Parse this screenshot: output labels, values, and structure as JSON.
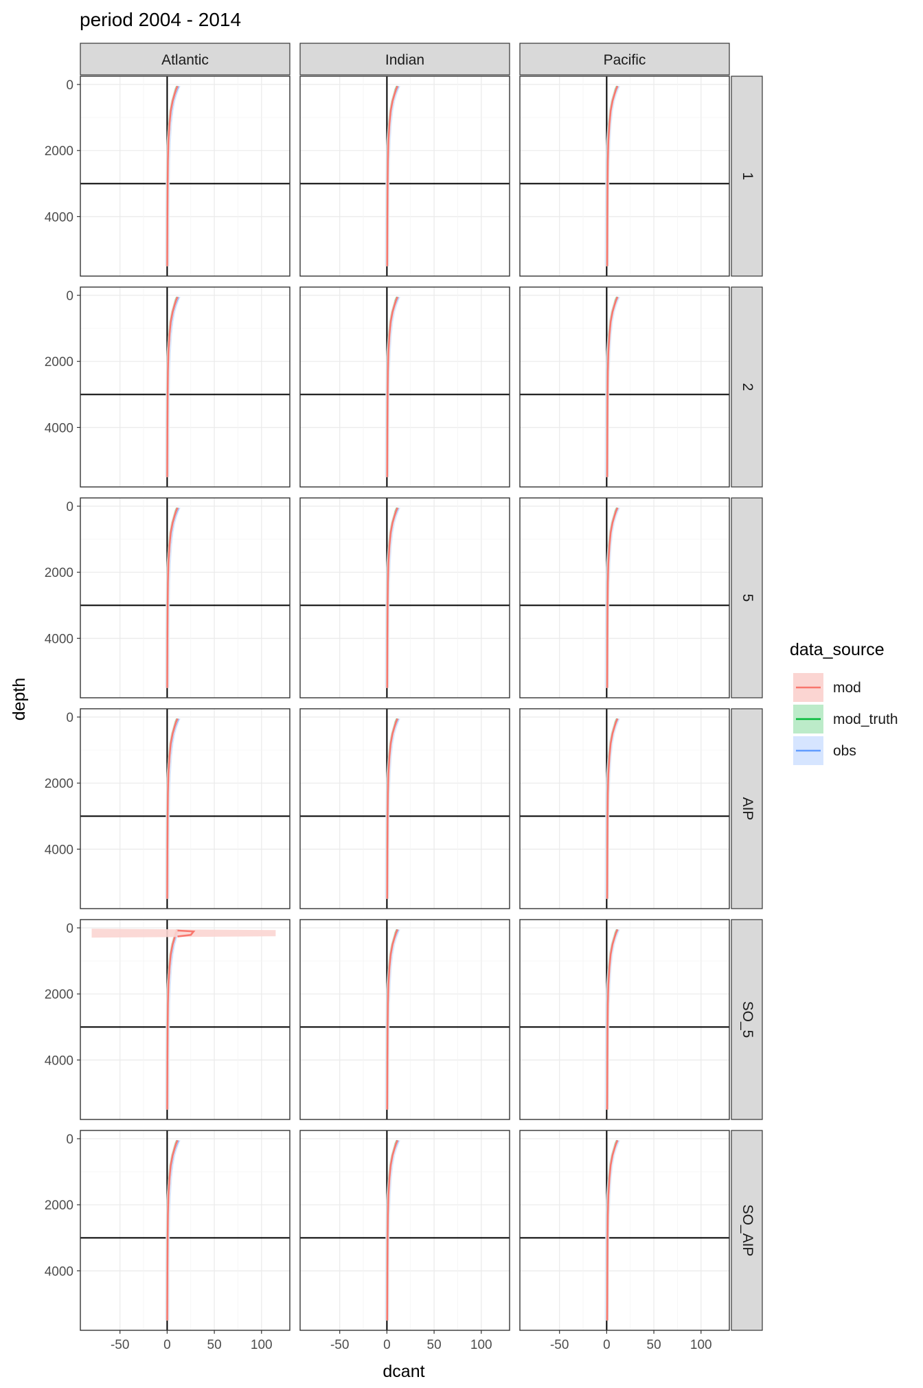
{
  "chart_data": {
    "type": "line",
    "title": "period 2004 - 2014",
    "xlabel": "dcant",
    "ylabel": "depth",
    "xlim": [
      -92,
      130
    ],
    "ylim": [
      5800,
      -250
    ],
    "y_reversed": true,
    "x_ticks": [
      -50,
      0,
      50,
      100
    ],
    "x_tick_labels": [
      "-50",
      "0",
      "50",
      "100"
    ],
    "y_ticks": [
      0,
      2000,
      4000
    ],
    "y_tick_labels": [
      "0",
      "2000",
      "4000"
    ],
    "reference_lines": {
      "vertical_x": 0,
      "horizontal_y": 3000
    },
    "col_facets": [
      "Atlantic",
      "Indian",
      "Pacific"
    ],
    "row_facets": [
      "1",
      "2",
      "5",
      "AIP",
      "SO_5",
      "SO_AIP"
    ],
    "legend": {
      "title": "data_source",
      "position": "right",
      "entries": [
        {
          "name": "mod",
          "color": "#F8766D",
          "fill": "#FBD5D2"
        },
        {
          "name": "mod_truth",
          "color": "#00BA38",
          "fill": "#BCEBC9"
        },
        {
          "name": "obs",
          "color": "#619CFF",
          "fill": "#D6E5FF"
        }
      ]
    },
    "profile_depths": [
      50,
      150,
      300,
      500,
      800,
      1200,
      1700,
      2300,
      3000,
      4000,
      5000,
      5500
    ],
    "series": [
      {
        "name": "obs",
        "values": [
          12.0,
          10.5,
          8.5,
          6.5,
          4.5,
          3.0,
          1.8,
          1.0,
          0.6,
          0.3,
          0.2,
          0.1
        ],
        "band": 2.2
      },
      {
        "name": "mod_truth",
        "values": [
          10.5,
          9.0,
          7.5,
          5.5,
          3.5,
          2.2,
          1.2,
          0.7,
          0.4,
          0.2,
          0.1,
          0.05
        ],
        "band": 1.4
      },
      {
        "name": "mod",
        "values": [
          11.0,
          9.5,
          7.8,
          5.8,
          3.8,
          2.5,
          1.4,
          0.8,
          0.5,
          0.3,
          0.15,
          0.1
        ],
        "band": 1.4
      }
    ],
    "annotations": [
      {
        "facet": [
          "SO_5",
          "Atlantic"
        ],
        "series": "mod",
        "depth": 150,
        "dcant": 28,
        "band": [
          -80,
          115
        ]
      }
    ]
  }
}
